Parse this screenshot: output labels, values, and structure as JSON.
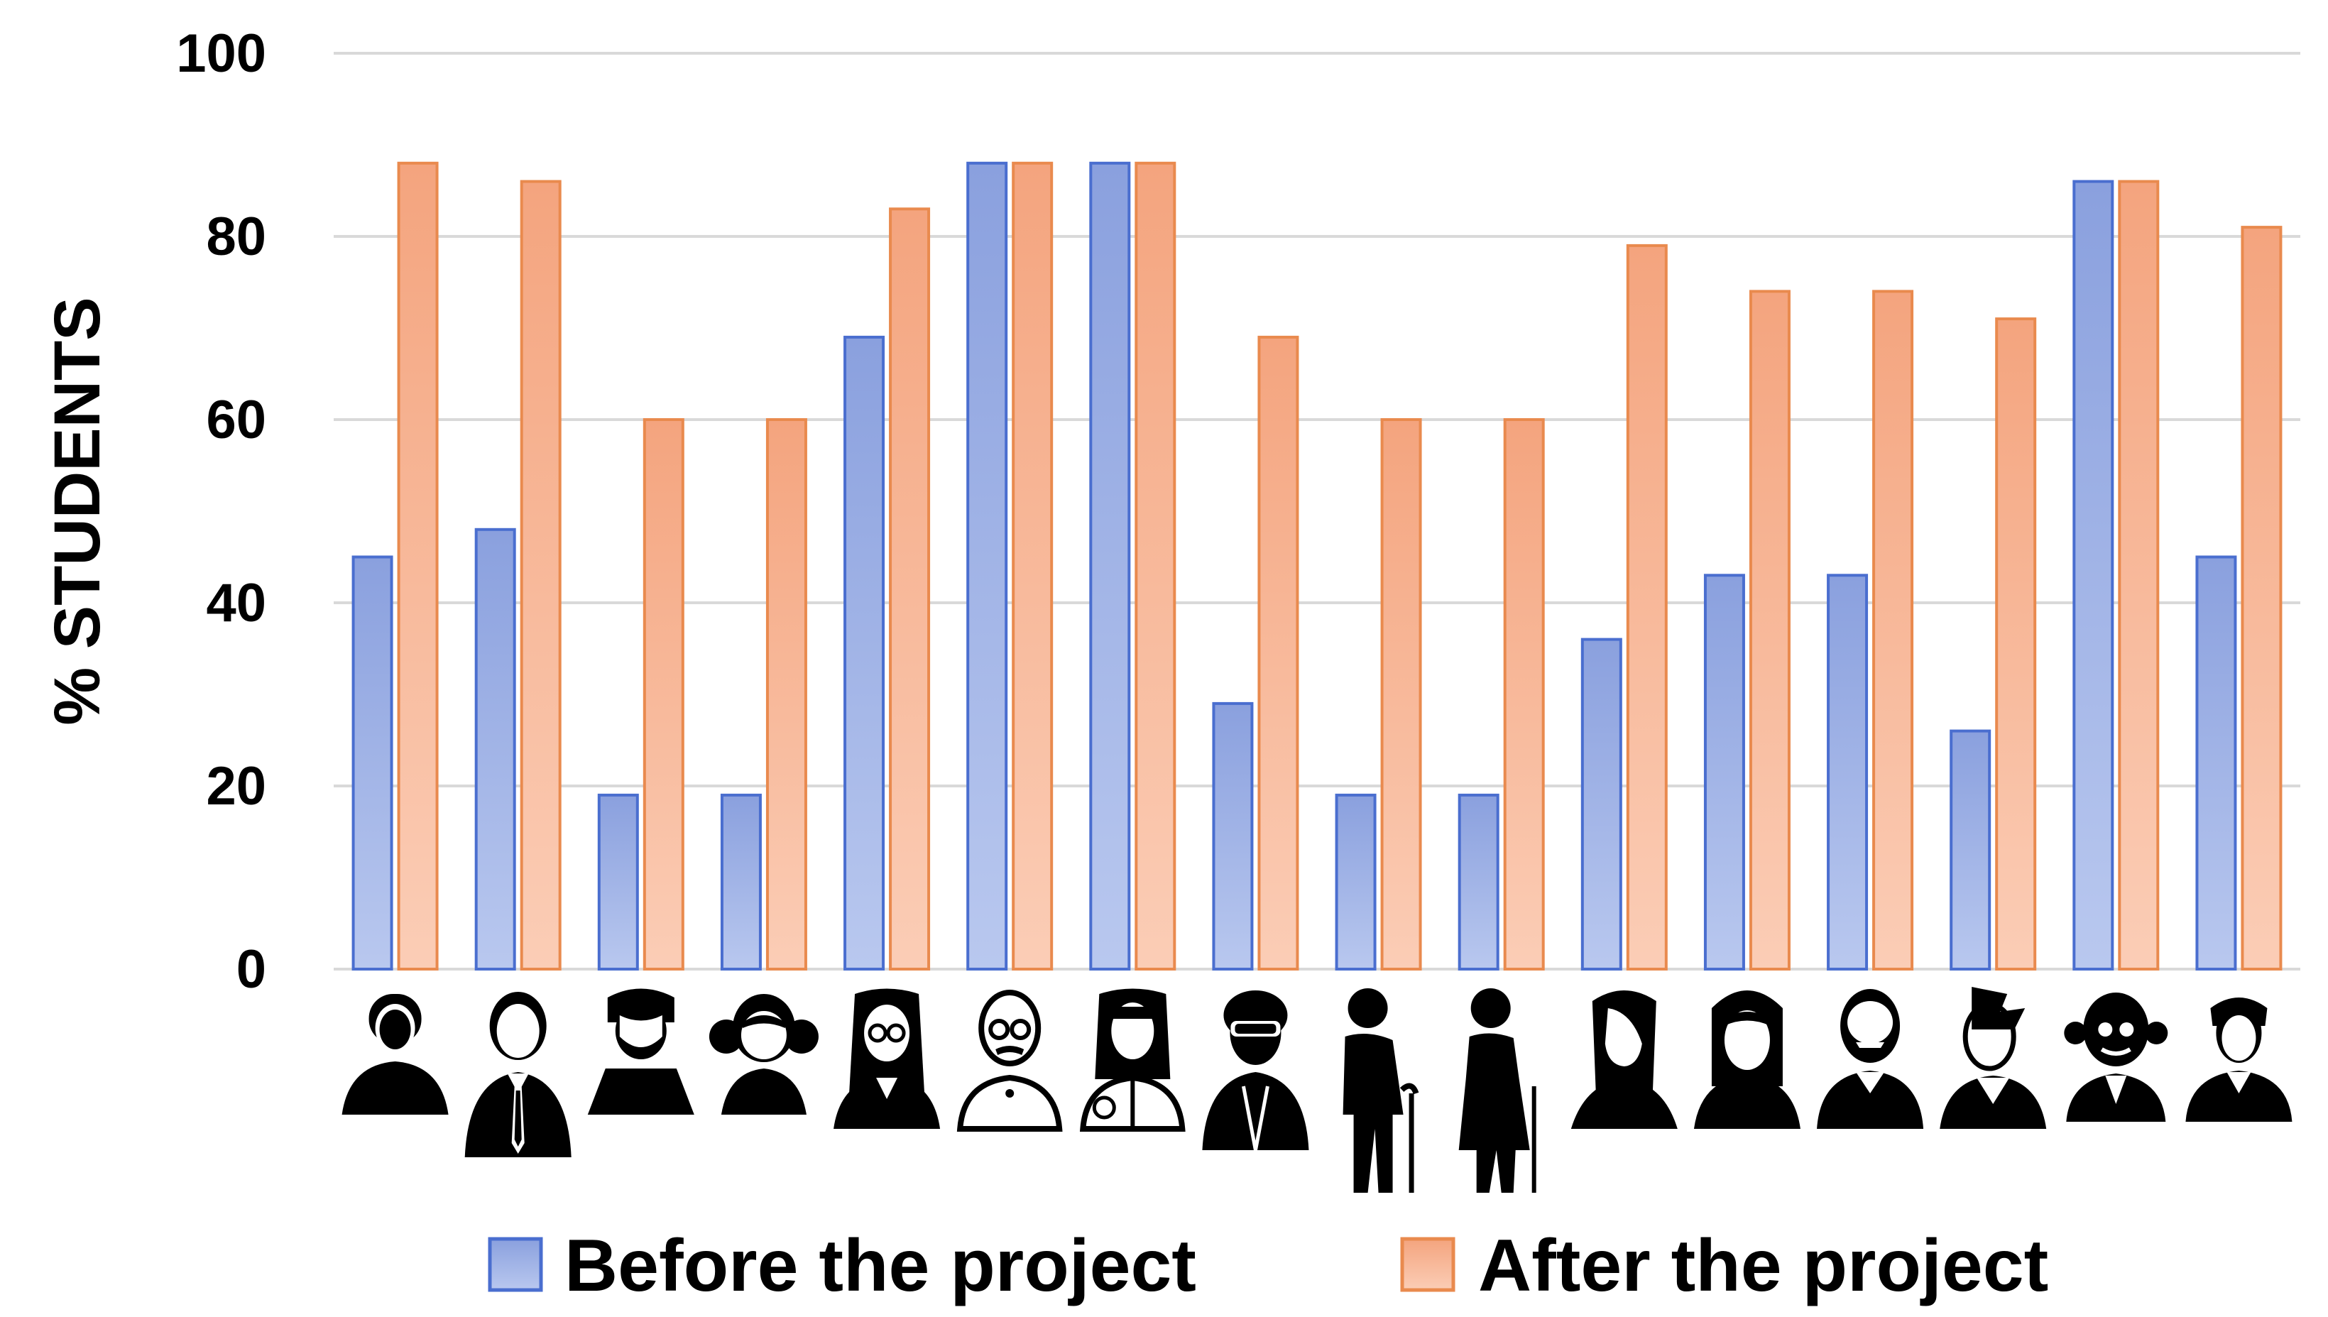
{
  "chart_data": {
    "type": "bar",
    "title": "",
    "xlabel": "",
    "ylabel": "% STUDENTS",
    "ylim": [
      0,
      100
    ],
    "yticks": [
      0,
      20,
      40,
      60,
      80,
      100
    ],
    "grid": true,
    "legend_position": "bottom",
    "categories": [
      "woman-short-hair",
      "man-suit-tie",
      "boy",
      "girl-pigtails",
      "woman-glasses",
      "old-man-glasses-mustache",
      "woman-doctor",
      "man-sunglasses-beard",
      "elderly-man-cane",
      "elderly-woman-cane",
      "woman-long-hair",
      "woman-bob",
      "man-beard",
      "man-punk-hair",
      "old-man-bald",
      "man-young"
    ],
    "series": [
      {
        "name": "Before the project",
        "color": "#8fa6e0",
        "values": [
          45,
          48,
          19,
          19,
          69,
          88,
          88,
          29,
          19,
          19,
          36,
          43,
          43,
          26,
          86,
          45
        ]
      },
      {
        "name": "After the project",
        "color": "#f5aa86",
        "values": [
          88,
          86,
          60,
          60,
          83,
          88,
          88,
          69,
          60,
          60,
          79,
          74,
          74,
          71,
          86,
          81
        ]
      }
    ]
  }
}
